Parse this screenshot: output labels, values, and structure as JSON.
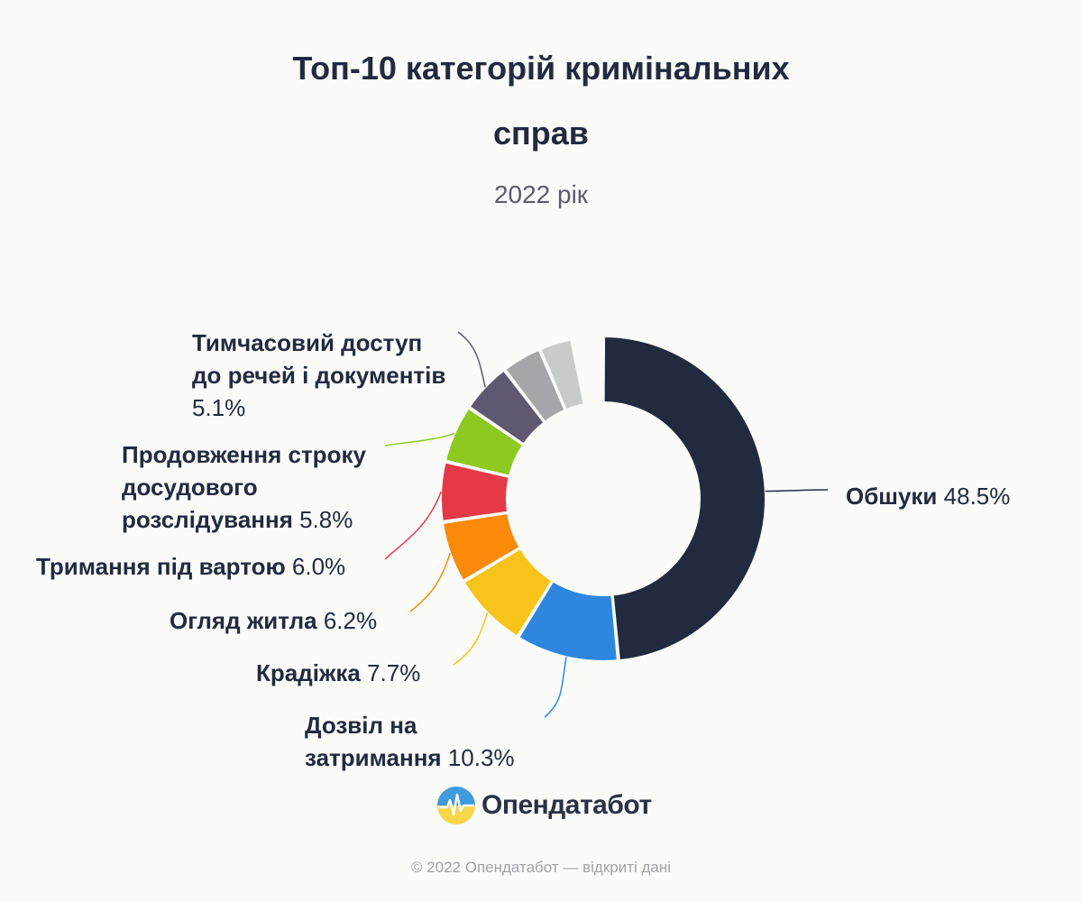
{
  "title": "Топ-10 категорій кримінальних справ",
  "subtitle": "2022 рік",
  "chart_data": {
    "type": "pie",
    "variant": "donut",
    "title": "Топ-10 категорій кримінальних справ",
    "subtitle": "2022 рік",
    "labels_shown": true,
    "slices": [
      {
        "name": "Обшуки",
        "value": 48.5,
        "label": "48.5%",
        "color": "#222a40"
      },
      {
        "name": "Дозвіл на затримання",
        "value": 10.3,
        "label": "10.3%",
        "color": "#2e86de"
      },
      {
        "name": "Крадіжка",
        "value": 7.7,
        "label": "7.7%",
        "color": "#f9c41a"
      },
      {
        "name": "Огляд житла",
        "value": 6.2,
        "label": "6.2%",
        "color": "#fb8a0a"
      },
      {
        "name": "Тримання під вартою",
        "value": 6.0,
        "label": "6.0%",
        "color": "#e63946"
      },
      {
        "name": "Продовження строку досудового розслідування",
        "value": 5.8,
        "label": "5.8%",
        "color": "#8dc921"
      },
      {
        "name": "Тимчасовий доступ до речей і документів",
        "value": 5.1,
        "label": "5.1%",
        "color": "#5e5870"
      },
      {
        "name": "",
        "value": 4.0,
        "label": "",
        "color": "#a6a6aa"
      },
      {
        "name": "",
        "value": 3.3,
        "label": "",
        "color": "#c9cbcb"
      },
      {
        "name": "",
        "value": 3.1,
        "label": "",
        "color": "#fbfcfa"
      }
    ]
  },
  "logo": {
    "text": "Опендатабот",
    "icon": "opendatabot-logo-icon"
  },
  "footer": "© 2022 Опендатабот — відкриті дані"
}
